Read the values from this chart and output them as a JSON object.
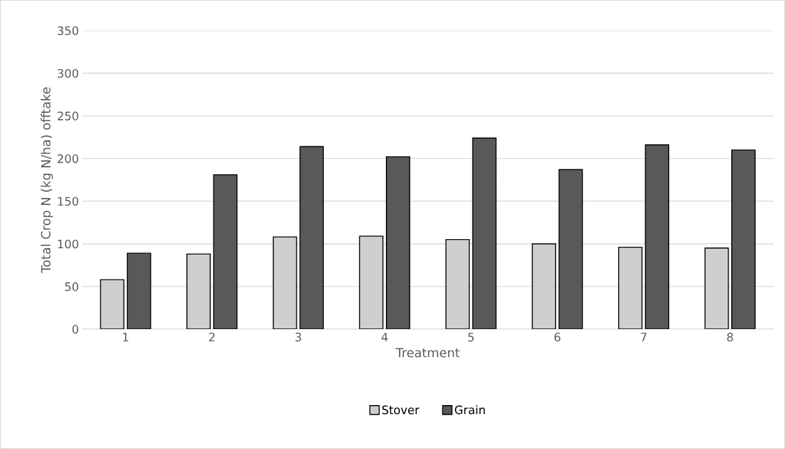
{
  "chart_data": {
    "type": "bar",
    "xlabel": "Treatment",
    "ylabel": "Total Crop N (kg N/ha) offtake",
    "categories": [
      "1",
      "2",
      "3",
      "4",
      "5",
      "6",
      "7",
      "8"
    ],
    "series": [
      {
        "name": "Stover",
        "color": "#d0cece",
        "values": [
          58,
          88,
          108,
          109,
          105,
          100,
          96,
          95
        ]
      },
      {
        "name": "Grain",
        "color": "#595959",
        "values": [
          89,
          181,
          214,
          202,
          224,
          187,
          216,
          210
        ]
      }
    ],
    "ylim": [
      0,
      350
    ],
    "yticks": [
      0,
      50,
      100,
      150,
      200,
      250,
      300,
      350
    ],
    "grid": "y",
    "legend": "bottom"
  }
}
